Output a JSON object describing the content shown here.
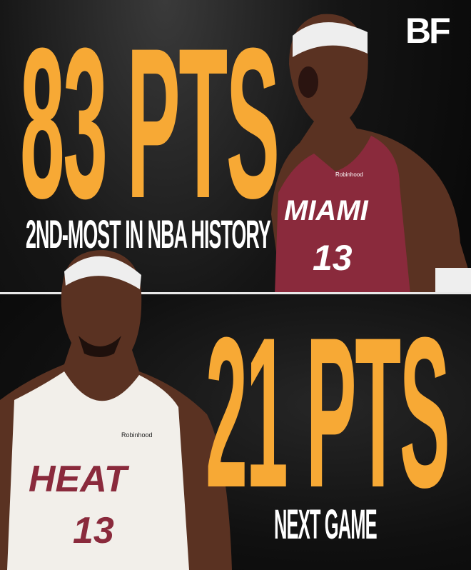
{
  "logo": "BF",
  "top": {
    "headline": "83 PTS",
    "subtitle": "2ND-MOST IN NBA HISTORY",
    "jersey_team": "MIAMI",
    "jersey_number": "13",
    "sponsor": "Robinhood"
  },
  "bottom": {
    "headline": "21 PTS",
    "subtitle": "NEXT GAME",
    "jersey_team": "HEAT",
    "jersey_number": "13",
    "sponsor": "Robinhood"
  },
  "colors": {
    "accent": "#f7a935",
    "text": "#ffffff",
    "jersey_top": "#8a2a3c",
    "jersey_bottom": "#f2efea",
    "background": "#0c0c0c"
  }
}
